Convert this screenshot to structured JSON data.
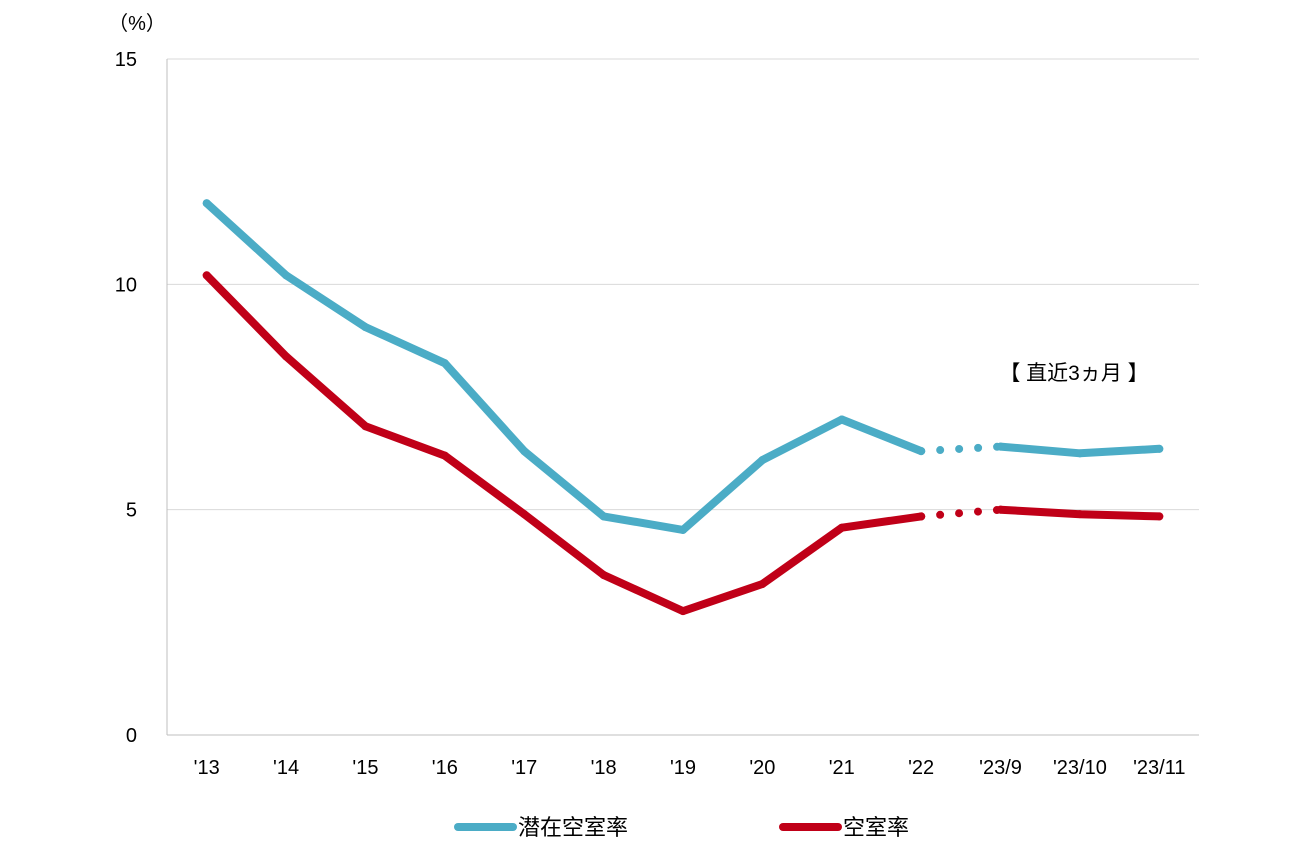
{
  "chart_data": {
    "type": "line",
    "unit_label": "（%）",
    "annotation": "【 直近3ヵ月 】",
    "ylim": [
      0,
      15
    ],
    "yticks": [
      0,
      5,
      10,
      15
    ],
    "grid": true,
    "legend_position": "bottom",
    "categories": [
      "'13",
      "'14",
      "'15",
      "'16",
      "'17",
      "'18",
      "'19",
      "'20",
      "'21",
      "'22",
      "'23/9",
      "'23/10",
      "'23/11"
    ],
    "series": [
      {
        "name": "潜在空室率",
        "color": "#4bacc6",
        "values": [
          11.8,
          10.2,
          9.05,
          8.25,
          6.3,
          4.85,
          4.55,
          6.1,
          7.0,
          6.3,
          6.4,
          6.25,
          6.35
        ]
      },
      {
        "name": "空室率",
        "color": "#c00018",
        "values": [
          10.2,
          8.4,
          6.85,
          6.2,
          4.9,
          3.55,
          2.75,
          3.35,
          4.6,
          4.85,
          5.0,
          4.9,
          4.85
        ]
      }
    ],
    "dotted_segment": {
      "from_index": 9,
      "to_index": 10
    }
  }
}
